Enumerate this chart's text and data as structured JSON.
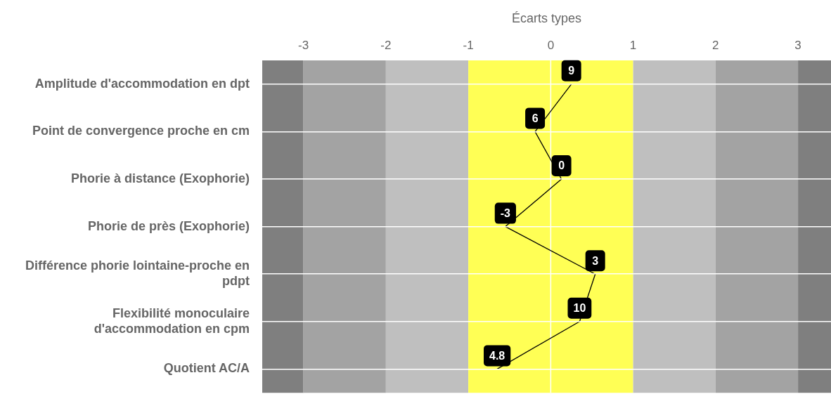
{
  "chart_data": {
    "type": "line",
    "orientation": "horizontal",
    "xlabel": "Écarts types",
    "categories": [
      "Amplitude d'accommodation en dpt",
      "Point de convergence proche en cm",
      "Phorie à distance (Exophorie)",
      "Phorie de près (Exophorie)",
      "Différence phorie lointaine-proche en pdpt",
      "Flexibilité monoculaire d'accommodation en cpm",
      "Quotient AC/A"
    ],
    "series": [
      {
        "color": "#000000",
        "values": [
          0.25,
          -0.19,
          0.13,
          -0.55,
          0.54,
          0.35,
          -0.65
        ]
      }
    ],
    "annotations": [
      {
        "text": "9",
        "x": 0.25,
        "y": "Amplitude d'accommodation en dpt"
      },
      {
        "text": "6",
        "x": -0.19,
        "y": "Point de convergence proche en cm"
      },
      {
        "text": "0",
        "x": 0.13,
        "y": "Phorie à distance (Exophorie)"
      },
      {
        "text": "-3",
        "x": -0.55,
        "y": "Phorie de près (Exophorie)"
      },
      {
        "text": "3",
        "x": 0.54,
        "y": "Différence phorie lointaine-proche en pdpt"
      },
      {
        "text": "10",
        "x": 0.35,
        "y": "Flexibilité monoculaire d'accommodation en cpm"
      },
      {
        "text": "4.8",
        "x": -0.65,
        "y": "Quotient AC/A"
      }
    ],
    "xlim": [
      -3.5,
      3.4
    ],
    "xticks": [
      -3,
      -2,
      -1,
      0,
      1,
      2,
      3
    ],
    "bands": [
      {
        "axis": "x",
        "from": -3.5,
        "to": -3,
        "color": "#7f7f7f"
      },
      {
        "axis": "x",
        "from": -3,
        "to": -2,
        "color": "#a3a3a3"
      },
      {
        "axis": "x",
        "from": -2,
        "to": -1,
        "color": "#bfbfbf"
      },
      {
        "axis": "x",
        "from": -1,
        "to": 1,
        "color": "#ffff55"
      },
      {
        "axis": "x",
        "from": 1,
        "to": 2,
        "color": "#bfbfbf"
      },
      {
        "axis": "x",
        "from": 2,
        "to": 3,
        "color": "#a3a3a3"
      },
      {
        "axis": "x",
        "from": 3,
        "to": 3.4,
        "color": "#7f7f7f"
      }
    ],
    "ref_lines": [
      {
        "axis": "x",
        "value": 0,
        "color": "#ffffff"
      }
    ],
    "grid": "y",
    "marker": "none",
    "line_style": "solid"
  }
}
